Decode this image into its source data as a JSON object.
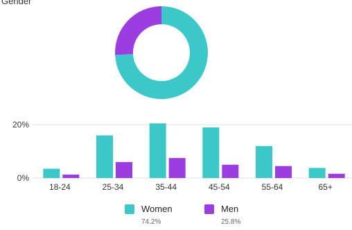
{
  "section_title": "Gender",
  "colors": {
    "women": "#3cc8c8",
    "men": "#9b3de0",
    "grid": "#dddddd",
    "donut_hole": "#ffffff"
  },
  "chart_data": [
    {
      "type": "pie",
      "style": "donut",
      "series": [
        {
          "name": "Women",
          "value": 74.2
        },
        {
          "name": "Men",
          "value": 25.8
        }
      ]
    },
    {
      "type": "bar",
      "categories": [
        "18-24",
        "25-34",
        "35-44",
        "45-54",
        "55-64",
        "65+"
      ],
      "series": [
        {
          "name": "Women",
          "values": [
            3.5,
            16,
            20.5,
            19,
            12,
            3.8
          ]
        },
        {
          "name": "Men",
          "values": [
            1.3,
            6,
            7.5,
            5,
            4.5,
            1.6
          ]
        }
      ],
      "yticks": [
        "0%",
        "20%"
      ],
      "ylim": [
        0,
        20
      ],
      "grid": true,
      "legend": "bottom-center"
    }
  ],
  "legend": [
    {
      "name": "Women",
      "pct": "74.2%",
      "color_key": "women"
    },
    {
      "name": "Men",
      "pct": "25.8%",
      "color_key": "men"
    }
  ]
}
